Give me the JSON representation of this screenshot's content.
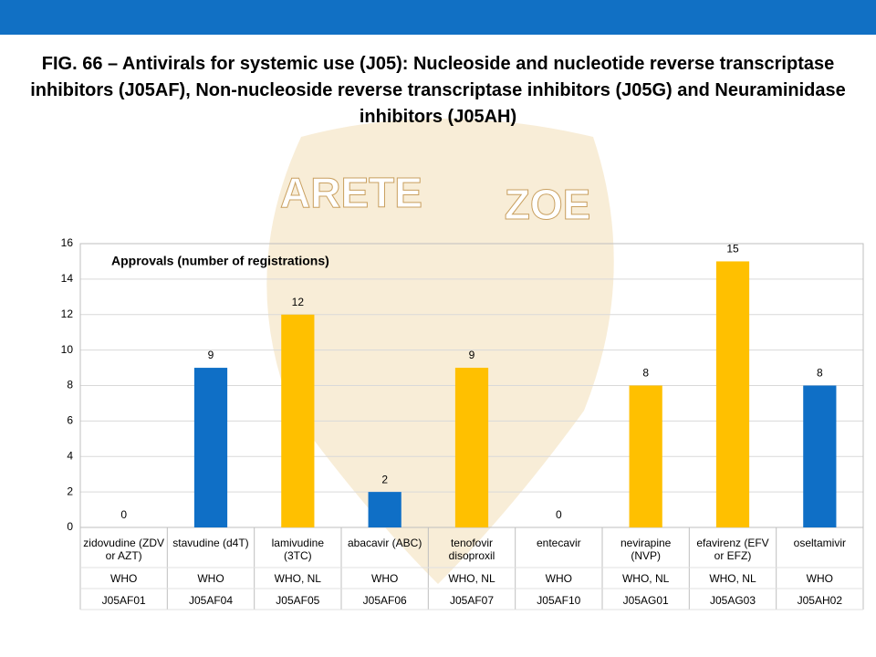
{
  "chart_data": {
    "type": "bar",
    "title": "FIG. 66 – Antivirals for systemic use (J05): Nucleoside and nucleotide reverse transcriptase inhibitors (J05AF), Non-nucleoside reverse transcriptase inhibitors (J05G) and Neuraminidase inhibitors (J05AH)",
    "watermark": [
      "ARETE",
      "ZOE"
    ],
    "annotation": "Approvals (number of registrations)",
    "categories": [
      "zidovudine (ZDV or AZT)",
      "stavudine (d4T)",
      "lamivudine (3TC)",
      "abacavir (ABC)",
      "tenofovir disoproxil",
      "entecavir",
      "nevirapine (NVP)",
      "efavirenz (EFV or EFZ)",
      "oseltamivir"
    ],
    "sources": [
      "WHO",
      "WHO",
      "WHO, NL",
      "WHO",
      "WHO, NL",
      "WHO",
      "WHO, NL",
      "WHO, NL",
      "WHO"
    ],
    "codes": [
      "J05AF01",
      "J05AF04",
      "J05AF05",
      "J05AF06",
      "J05AF07",
      "J05AF10",
      "J05AG01",
      "J05AG03",
      "J05AH02"
    ],
    "values": [
      0,
      9,
      12,
      2,
      9,
      0,
      8,
      15,
      8
    ],
    "colors": [
      "#0f6fc6",
      "#0f6fc6",
      "#ffc000",
      "#0f6fc6",
      "#ffc000",
      "#ffc000",
      "#ffc000",
      "#ffc000",
      "#0f6fc6"
    ],
    "ylim": [
      0,
      16
    ],
    "yticks": [
      0,
      2,
      4,
      6,
      8,
      10,
      12,
      14,
      16
    ],
    "grid": true
  }
}
